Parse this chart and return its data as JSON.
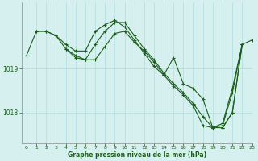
{
  "title": "Graphe pression niveau de la mer (hPa)",
  "bg_color": "#d6f0f0",
  "grid_color": "#b0dede",
  "line_color": "#1a5e1a",
  "xlim": [
    -0.5,
    23
  ],
  "ylim": [
    1017.3,
    1020.5
  ],
  "yticks": [
    1018,
    1019
  ],
  "xticks": [
    0,
    1,
    2,
    3,
    4,
    5,
    6,
    7,
    8,
    9,
    10,
    11,
    12,
    13,
    14,
    15,
    16,
    17,
    18,
    19,
    20,
    21,
    22,
    23
  ],
  "series": [
    [
      1019.3,
      1019.85,
      1019.85,
      1019.75,
      1019.55,
      1019.4,
      1019.4,
      1019.85,
      1020.0,
      1020.1,
      1019.95,
      1019.65,
      1019.35,
      1019.05,
      1018.85,
      1018.6,
      1018.4,
      1018.15,
      1017.7,
      1017.65,
      1017.75,
      1018.55,
      1019.55,
      null
    ],
    [
      null,
      1019.85,
      1019.85,
      1019.75,
      1019.45,
      1019.25,
      1019.2,
      1019.55,
      1019.85,
      1020.05,
      1020.05,
      1019.75,
      1019.45,
      1019.2,
      1018.9,
      1018.65,
      1018.45,
      1018.2,
      1017.9,
      1017.65,
      1017.7,
      1018.45,
      1019.55,
      null
    ],
    [
      null,
      null,
      null,
      null,
      1019.45,
      1019.3,
      1019.2,
      1019.2,
      1019.5,
      1019.8,
      1019.85,
      1019.6,
      1019.4,
      1019.15,
      1018.85,
      1019.25,
      1018.65,
      1018.55,
      1018.3,
      1017.65,
      1017.65,
      1018.0,
      1019.55,
      null
    ],
    [
      null,
      null,
      null,
      null,
      null,
      null,
      null,
      null,
      null,
      null,
      null,
      null,
      null,
      null,
      null,
      null,
      null,
      null,
      null,
      null,
      1017.65,
      1018.0,
      1019.55,
      1019.65
    ]
  ]
}
